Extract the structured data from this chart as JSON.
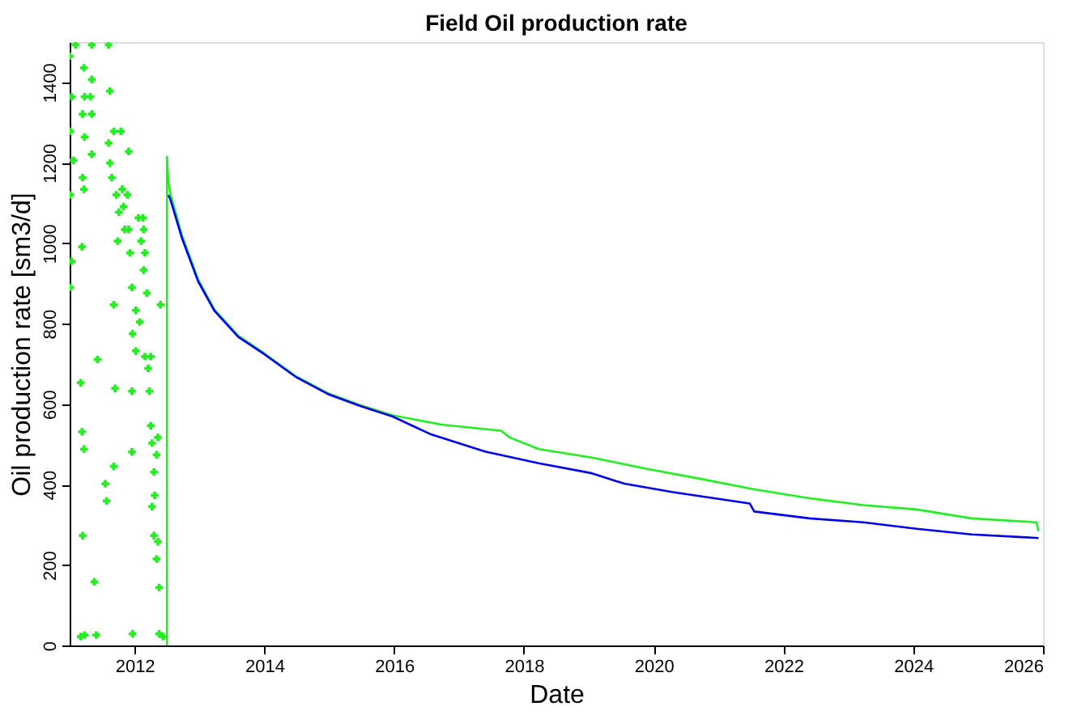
{
  "chart_data": {
    "type": "line",
    "title": "Field Oil production rate",
    "xlabel": "Date",
    "ylabel": "Oil production rate [sm3/d]",
    "xlim": [
      2011,
      2026
    ],
    "xticks": [
      2012,
      2014,
      2016,
      2018,
      2020,
      2022,
      2024,
      2026
    ],
    "ylim": [
      0,
      1500
    ],
    "yticks": [
      0,
      200,
      400,
      600,
      800,
      1000,
      1200,
      1400
    ],
    "grid": false,
    "line_style": "solid",
    "series": [
      {
        "type": "scatter",
        "marker": "cross",
        "color": "#22ee22",
        "x": [
          2011.0,
          2011.03,
          2011.01,
          2011.06,
          2011.01,
          2011.03,
          2011.01,
          2011.09,
          2011.17,
          2011.19,
          2011.22,
          2011.2,
          2011.17,
          2011.23,
          2011.22,
          2011.23,
          2011.2,
          2011.23,
          2011.2,
          2011.22,
          2011.19,
          2011.34,
          2011.34,
          2011.32,
          2011.34,
          2011.34,
          2011.38,
          2011.41,
          2011.43,
          2011.55,
          2011.57,
          2011.6,
          2011.62,
          2011.6,
          2011.62,
          2011.65,
          2011.68,
          2011.68,
          2011.7,
          2011.68,
          2011.72,
          2011.76,
          2011.74,
          2011.81,
          2011.83,
          2011.85,
          2011.79,
          2011.89,
          2011.91,
          2011.93,
          2011.96,
          2011.91,
          2011.96,
          2011.96,
          2011.97,
          2011.97,
          2012.02,
          2012.02,
          2012.06,
          2012.08,
          2012.1,
          2012.13,
          2012.14,
          2012.16,
          2012.16,
          2012.19,
          2012.14,
          2012.21,
          2012.23,
          2012.25,
          2012.25,
          2012.27,
          2012.27,
          2012.3,
          2012.3,
          2012.31,
          2012.34,
          2012.36,
          2012.34,
          2012.36,
          2012.38,
          2012.38,
          2012.4,
          2012.44
        ],
        "values": [
          1465,
          1364,
          1278,
          1206,
          1120,
          955,
          890,
          1493,
          653,
          531,
          488,
          273,
          22,
          26,
          1436,
          1364,
          1321,
          1264,
          1163,
          1134,
          991,
          1493,
          1407,
          1364,
          1321,
          1221,
          158,
          26,
          711,
          402,
          359,
          1493,
          1378,
          1249,
          1199,
          1163,
          1278,
          847,
          639,
          445,
          1120,
          1077,
          1005,
          1134,
          1091,
          1034,
          1278,
          1120,
          1034,
          976,
          890,
          1228,
          632,
          481,
          29,
          775,
          833,
          732,
          1063,
          804,
          1005,
          1063,
          933,
          718,
          976,
          876,
          1034,
          689,
          632,
          546,
          718,
          503,
          345,
          273,
          431,
          373,
          474,
          517,
          215,
          258,
          144,
          29,
          847,
          22
        ]
      },
      {
        "color": "#22ee22",
        "x": [
          2012.5,
          2012.5,
          2012.52,
          2012.55,
          2012.73,
          2012.98,
          2013.23,
          2013.6,
          2014.0,
          2014.48,
          2014.98,
          2015.48,
          2015.98,
          2016.73,
          2017.65,
          2017.78,
          2018.23,
          2019.05,
          2019.9,
          2020.73,
          2021.55,
          2022.4,
          2023.23,
          2024.05,
          2024.9,
          2025.9,
          2025.93
        ],
        "values": [
          0,
          1215,
          1160,
          1125,
          1020,
          910,
          835,
          770,
          726,
          670,
          627,
          597,
          572,
          549,
          534,
          517,
          488,
          467,
          439,
          414,
          388,
          366,
          349,
          338,
          316,
          306,
          284
        ]
      },
      {
        "color": "#0000ee",
        "x": [
          2012.52,
          2012.55,
          2012.73,
          2012.98,
          2013.23,
          2013.6,
          2014.0,
          2014.48,
          2014.98,
          2015.48,
          2015.98,
          2016.55,
          2017.4,
          2018.23,
          2019.05,
          2019.55,
          2020.3,
          2021.48,
          2021.55,
          2022.4,
          2023.23,
          2024.05,
          2024.9,
          2025.93
        ],
        "values": [
          1120,
          1110,
          1013,
          905,
          832,
          767,
          724,
          668,
          625,
          595,
          569,
          526,
          482,
          453,
          428,
          402,
          381,
          353,
          333,
          316,
          306,
          290,
          276,
          267
        ]
      }
    ]
  }
}
